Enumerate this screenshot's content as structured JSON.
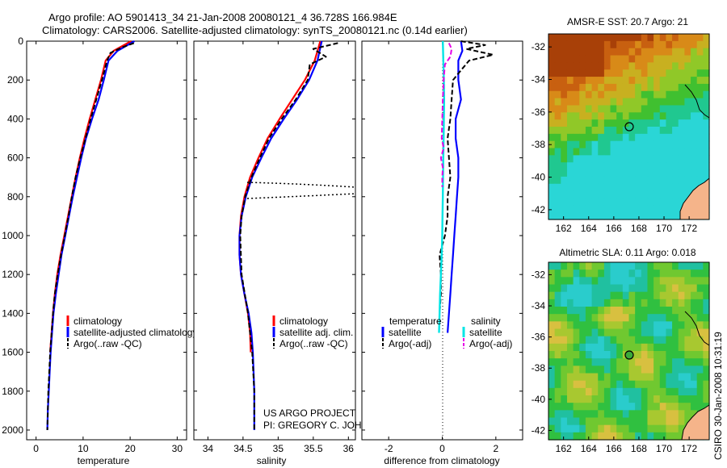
{
  "header": {
    "title_line1": "Argo profile: AO 5901413_34 21-Jan-2008 20080121_4 36.728S 166.984E",
    "title_line2": "Climatology: CARS2006. Satellite-adjusted climatology: synTS_20080121.nc (0.14d earlier)"
  },
  "footer": {
    "project": "US ARGO PROJECT",
    "pi": "PI: GREGORY C. JOHNSON",
    "stamp": "CSIRO 30-Jan-2008 10:31:19"
  },
  "colors": {
    "climatology": "#ff0000",
    "satellite": "#0000ff",
    "argo": "#000000",
    "temperature_satellite_diff": "#00e5e5",
    "salinity_argo_diff": "#e600e6",
    "map_land": "#f5b48a"
  },
  "depth_ticks": [
    "0",
    "200",
    "400",
    "600",
    "800",
    "1000",
    "1200",
    "1400",
    "1600",
    "1800",
    "2000"
  ],
  "chart_data": [
    {
      "type": "line",
      "panel": "temperature",
      "xlabel": "temperature",
      "xlim": [
        -2,
        32
      ],
      "ylim": [
        2050,
        0
      ],
      "x_ticks": [
        "0",
        "10",
        "20",
        "30"
      ],
      "legend": [
        "climatology",
        "satellite-adjusted climatology",
        "Argo(..raw -QC)"
      ],
      "legend_placement": "lower-center",
      "series": [
        {
          "name": "climatology",
          "depth": [
            0,
            50,
            100,
            200,
            300,
            400,
            500,
            600,
            700,
            800,
            900,
            1000,
            1100,
            1200,
            1300,
            1400,
            1500,
            1600
          ],
          "values": [
            20.2,
            16.5,
            14.8,
            13.8,
            12.6,
            11.4,
            10.3,
            9.3,
            8.4,
            7.6,
            6.8,
            6.0,
            5.2,
            4.5,
            4.0,
            3.6,
            3.3,
            3.0
          ]
        },
        {
          "name": "satellite-adjusted climatology",
          "depth": [
            0,
            50,
            100,
            200,
            300,
            400,
            500,
            600,
            700,
            800,
            900,
            1000,
            1100,
            1200,
            1300,
            1400,
            1500,
            1600,
            1700,
            1800,
            1900,
            2000
          ],
          "values": [
            20.9,
            17.3,
            15.4,
            14.4,
            13.3,
            11.9,
            10.6,
            9.6,
            8.7,
            7.8,
            7.0,
            6.2,
            5.4,
            4.8,
            4.2,
            3.7,
            3.4,
            3.1,
            2.9,
            2.7,
            2.5,
            2.4
          ]
        },
        {
          "name": "Argo(..raw -QC)",
          "depth": [
            10,
            30,
            60,
            100,
            200,
            300,
            400,
            500,
            600,
            700,
            800,
            900,
            1000,
            1100,
            1200,
            1300,
            1400,
            1500,
            1600,
            1700,
            1800,
            1900,
            2000
          ],
          "values": [
            20.8,
            18.5,
            15.8,
            15.1,
            14.0,
            12.8,
            11.6,
            10.5,
            9.4,
            8.4,
            7.6,
            6.9,
            6.1,
            5.3,
            4.6,
            4.0,
            3.6,
            3.3,
            3.0,
            2.8,
            2.6,
            2.5,
            2.4
          ]
        }
      ]
    },
    {
      "type": "line",
      "panel": "salinity",
      "xlabel": "salinity",
      "xlim": [
        33.8,
        36.1
      ],
      "ylim": [
        2050,
        0
      ],
      "x_ticks": [
        "34",
        "34.5",
        "35",
        "35.5",
        "36"
      ],
      "legend": [
        "climatology",
        "satellite adj. clim.",
        "Argo(..raw -QC)"
      ],
      "legend_placement": "lower-right",
      "series": [
        {
          "name": "climatology",
          "depth": [
            0,
            100,
            200,
            300,
            400,
            500,
            600,
            700,
            800,
            900,
            1000,
            1100,
            1200,
            1300,
            1400,
            1500,
            1600
          ],
          "values": [
            35.6,
            35.52,
            35.38,
            35.2,
            35.02,
            34.85,
            34.72,
            34.6,
            34.52,
            34.47,
            34.45,
            34.45,
            34.47,
            34.52,
            34.57,
            34.6,
            34.61
          ]
        },
        {
          "name": "satellite adj. clim.",
          "depth": [
            0,
            100,
            200,
            300,
            400,
            500,
            600,
            700,
            800,
            900,
            1000,
            1100,
            1200,
            1300,
            1400,
            1500,
            1600,
            1700,
            1800,
            1900,
            2000
          ],
          "values": [
            35.62,
            35.56,
            35.44,
            35.27,
            35.08,
            34.9,
            34.76,
            34.63,
            34.54,
            34.48,
            34.45,
            34.45,
            34.47,
            34.52,
            34.58,
            34.62,
            34.64,
            34.65,
            34.66,
            34.66,
            34.66
          ]
        },
        {
          "name": "Argo(..raw -QC)",
          "depth": [
            10,
            40,
            80,
            120,
            200,
            300,
            400,
            500,
            600,
            700,
            800,
            900,
            1000,
            1200,
            1400,
            1600,
            1800,
            2000
          ],
          "values": [
            35.85,
            35.5,
            35.68,
            35.45,
            35.42,
            35.25,
            35.05,
            34.87,
            34.74,
            34.62,
            34.53,
            34.48,
            34.46,
            34.48,
            34.57,
            34.63,
            34.66,
            34.66
          ]
        }
      ]
    },
    {
      "type": "line",
      "panel": "difference",
      "xlabel": "difference from climatology",
      "xlim": [
        -3,
        3
      ],
      "ylim": [
        2050,
        0
      ],
      "x_ticks": [
        "-2",
        "0",
        "2"
      ],
      "legend_groups": [
        {
          "title": "temperature",
          "items": [
            "satellite",
            "Argo(-adj)"
          ]
        },
        {
          "title": "salinity",
          "items": [
            "satellite",
            "Argo(-adj)"
          ]
        }
      ],
      "legend_placement": "lower-center",
      "series": [
        {
          "name": "temperature satellite",
          "depth": [
            0,
            50,
            100,
            200,
            300,
            400,
            500,
            600,
            700,
            800,
            900,
            1000,
            1100,
            1200,
            1300,
            1400,
            1500
          ],
          "values": [
            0.7,
            0.75,
            0.6,
            0.6,
            0.7,
            0.5,
            0.5,
            0.6,
            0.6,
            0.55,
            0.5,
            0.45,
            0.4,
            0.35,
            0.3,
            0.25,
            0.2
          ]
        },
        {
          "name": "temperature Argo(-adj)",
          "depth": [
            0,
            20,
            40,
            70,
            100,
            150,
            200,
            300,
            400,
            500,
            600,
            700,
            800,
            900,
            1000,
            1100,
            1200,
            1300,
            1400
          ],
          "values": [
            0.7,
            1.6,
            0.9,
            1.9,
            1.0,
            0.7,
            0.4,
            0.35,
            0.3,
            0.2,
            0.25,
            0.3,
            0.2,
            0.2,
            0.1,
            -0.1,
            -0.05,
            -0.05,
            -0.1
          ]
        },
        {
          "name": "salinity satellite",
          "depth": [
            0,
            100,
            200,
            300,
            400,
            500,
            600,
            700,
            800,
            900,
            1000,
            1100,
            1200,
            1300,
            1400,
            1500
          ],
          "values": [
            0.02,
            0.04,
            0.06,
            0.07,
            0.06,
            0.05,
            0.04,
            0.03,
            0.02,
            0.01,
            0.0,
            -0.02,
            -0.05,
            -0.08,
            -0.1,
            -0.12
          ]
        },
        {
          "name": "salinity Argo(-adj)",
          "depth": [
            10,
            40,
            80,
            120,
            200,
            300,
            400,
            500,
            550,
            600,
            650,
            700,
            750
          ],
          "values": [
            0.25,
            0.35,
            0.3,
            0.1,
            0.05,
            0.02,
            0.0,
            -0.02,
            0.05,
            -0.05,
            0.02,
            0.0,
            0.0
          ]
        }
      ]
    },
    {
      "type": "heatmap",
      "panel": "sst_map",
      "title": "AMSR-E SST: 20.7 Argo: 21",
      "xlim": [
        160.8,
        173.6
      ],
      "ylim": [
        -42.6,
        -31.2
      ],
      "x_ticks": [
        "162",
        "164",
        "166",
        "168",
        "170",
        "172"
      ],
      "y_ticks": [
        "-32",
        "-34",
        "-36",
        "-38",
        "-40",
        "-42"
      ],
      "marker": {
        "lon": 166.984,
        "lat": -36.728
      },
      "palette": [
        "#2ad6d6",
        "#20c890",
        "#40c030",
        "#90c828",
        "#c8b020",
        "#d88a18",
        "#c86010",
        "#a84008"
      ]
    },
    {
      "type": "heatmap",
      "panel": "sla_map",
      "title": "Altimetric SLA: 0.11 Argo: 0.018",
      "xlim": [
        160.8,
        173.6
      ],
      "ylim": [
        -42.6,
        -31.2
      ],
      "x_ticks": [
        "162",
        "164",
        "166",
        "168",
        "170",
        "172"
      ],
      "y_ticks": [
        "-32",
        "-34",
        "-36",
        "-38",
        "-40",
        "-42"
      ],
      "marker": {
        "lon": 166.984,
        "lat": -36.728
      },
      "palette": [
        "#2acccc",
        "#20c0a0",
        "#30c040",
        "#70c830",
        "#a8c830",
        "#d8c040",
        "#e09060"
      ]
    }
  ]
}
